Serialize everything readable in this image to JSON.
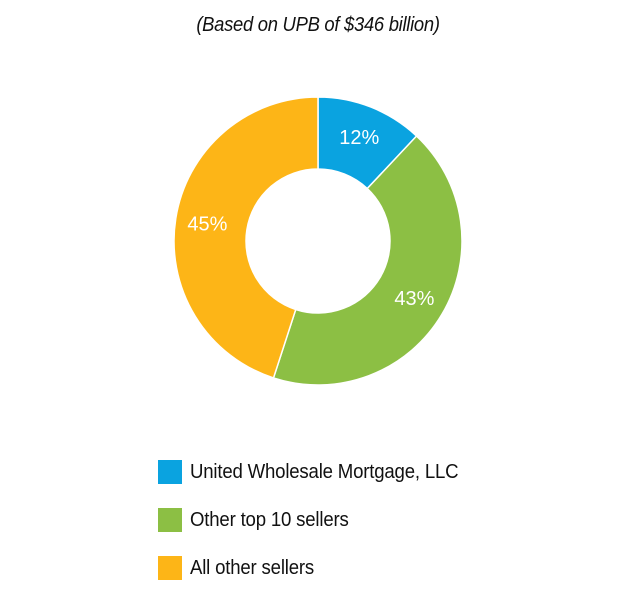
{
  "chart_data": {
    "type": "pie",
    "subtitle": "(Based on UPB of $346 billion)",
    "slices": [
      {
        "name": "United Wholesale Mortgage, LLC",
        "value": 12,
        "label": "12%",
        "color": "#0aa3e0"
      },
      {
        "name": "Other top 10 sellers",
        "value": 43,
        "label": "43%",
        "color": "#8cbf44"
      },
      {
        "name": "All other sellers",
        "value": 45,
        "label": "45%",
        "color": "#fdb517"
      }
    ],
    "legend_position": "bottom"
  }
}
